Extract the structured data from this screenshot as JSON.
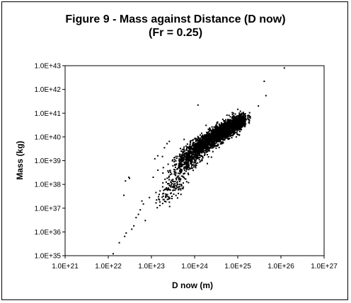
{
  "chart_data": {
    "type": "scatter",
    "title": "Figure 9 - Mass against Distance (D now)",
    "subtitle": "(Fr = 0.25)",
    "xlabel": "D now (m)",
    "ylabel": "Mass (kg)",
    "x_scale": "log",
    "y_scale": "log",
    "xlim": [
      1e+21,
      1e+27
    ],
    "ylim": [
      1e+35,
      1e+43
    ],
    "x_ticks": [
      "1.0E+21",
      "1.0E+22",
      "1.0E+23",
      "1.0E+24",
      "1.0E+25",
      "1.0E+26",
      "1.0E+27"
    ],
    "y_ticks": [
      "1.0E+35",
      "1.0E+36",
      "1.0E+37",
      "1.0E+38",
      "1.0E+39",
      "1.0E+40",
      "1.0E+41",
      "1.0E+42",
      "1.0E+43"
    ],
    "grid": false,
    "legend": "none",
    "marker_color": "#000000",
    "points": [
      [
        1.3e+22,
        1.2e+35
      ],
      [
        1.8e+22,
        3.5e+35
      ],
      [
        2.4e+22,
        6.5e+35
      ],
      [
        2.6e+22,
        9e+35
      ],
      [
        2.3e+22,
        3.5e+37
      ],
      [
        2.5e+22,
        1.4e+38
      ],
      [
        3e+22,
        2e+38
      ],
      [
        3.1e+22,
        1.8e+38
      ],
      [
        3.5e+22,
        1.3e+36
      ],
      [
        3.9e+22,
        1.8e+36
      ],
      [
        4.4e+22,
        4e+36
      ],
      [
        5e+22,
        5.5e+36
      ],
      [
        5.5e+22,
        8.5e+36
      ],
      [
        6e+22,
        2e+37
      ],
      [
        6.5e+22,
        1.5e+37
      ],
      [
        7.2e+22,
        3e+36
      ],
      [
        9e+22,
        2.8e+37
      ],
      [
        1.1e+23,
        2e+38
      ],
      [
        1.2e+23,
        1.2e+39
      ],
      [
        1.4e+23,
        1.6e+39
      ],
      [
        1.8e+23,
        1.5e+39
      ],
      [
        2e+23,
        3.5e+39
      ],
      [
        2.3e+23,
        5.2e+39
      ],
      [
        2.6e+23,
        6.5e+39
      ],
      [
        1.2e+24,
        2.2e+41
      ],
      [
        3e+25,
        2e+41
      ],
      [
        4.1e+25,
        2.2e+42
      ],
      [
        4.5e+25,
        5.5e+41
      ],
      [
        1.2e+26,
        8e+42
      ]
    ],
    "clusters": [
      {
        "cx": 3e+23,
        "cy": 6e+37,
        "sx": 0.18,
        "sy": 0.35,
        "n": 120
      },
      {
        "cx": 7e+23,
        "cy": 1.2e+39,
        "sx": 0.2,
        "sy": 0.4,
        "n": 450
      },
      {
        "cx": 1.6e+24,
        "cy": 5e+39,
        "sx": 0.18,
        "sy": 0.3,
        "n": 650
      },
      {
        "cx": 4e+24,
        "cy": 1.5e+40,
        "sx": 0.17,
        "sy": 0.28,
        "n": 1050
      },
      {
        "cx": 9e+24,
        "cy": 3.2e+40,
        "sx": 0.13,
        "sy": 0.24,
        "n": 750
      }
    ]
  }
}
